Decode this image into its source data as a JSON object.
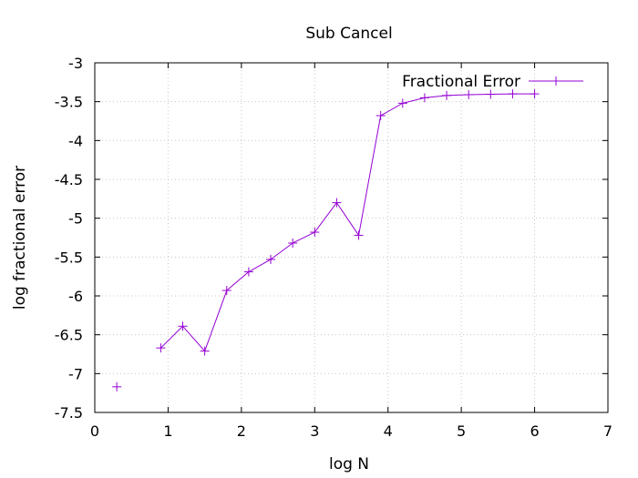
{
  "chart_data": {
    "type": "line",
    "title": "Sub Cancel",
    "xlabel": "log N",
    "ylabel": "log fractional error",
    "xlim": [
      0,
      7
    ],
    "ylim": [
      -7.5,
      -3
    ],
    "xticks": [
      "0",
      "1",
      "2",
      "3",
      "4",
      "5",
      "6",
      "7"
    ],
    "yticks": [
      "-3",
      "-3.5",
      "-4",
      "-4.5",
      "-5",
      "-5.5",
      "-6",
      "-6.5",
      "-7",
      "-7.5"
    ],
    "grid": true,
    "legend": "top-right",
    "series": [
      {
        "name": "Fractional Error",
        "color": "#9400d3",
        "marker": "plus",
        "points": [
          {
            "x": 0.3,
            "y": -7.17,
            "connected": false
          },
          {
            "x": 0.9,
            "y": -6.67,
            "connected": false
          },
          {
            "x": 1.2,
            "y": -6.39,
            "connected": true
          },
          {
            "x": 1.5,
            "y": -6.71,
            "connected": true
          },
          {
            "x": 1.8,
            "y": -5.93,
            "connected": true
          },
          {
            "x": 2.1,
            "y": -5.69,
            "connected": true
          },
          {
            "x": 2.4,
            "y": -5.53,
            "connected": true
          },
          {
            "x": 2.7,
            "y": -5.32,
            "connected": true
          },
          {
            "x": 3.0,
            "y": -5.18,
            "connected": true
          },
          {
            "x": 3.3,
            "y": -4.8,
            "connected": true
          },
          {
            "x": 3.6,
            "y": -5.22,
            "connected": true
          },
          {
            "x": 3.9,
            "y": -3.68,
            "connected": true
          },
          {
            "x": 4.2,
            "y": -3.52,
            "connected": true
          },
          {
            "x": 4.5,
            "y": -3.45,
            "connected": true
          },
          {
            "x": 4.8,
            "y": -3.42,
            "connected": true
          },
          {
            "x": 5.1,
            "y": -3.41,
            "connected": true
          },
          {
            "x": 5.4,
            "y": -3.405,
            "connected": true
          },
          {
            "x": 5.7,
            "y": -3.4,
            "connected": true
          },
          {
            "x": 6.0,
            "y": -3.4,
            "connected": true
          }
        ]
      }
    ]
  }
}
